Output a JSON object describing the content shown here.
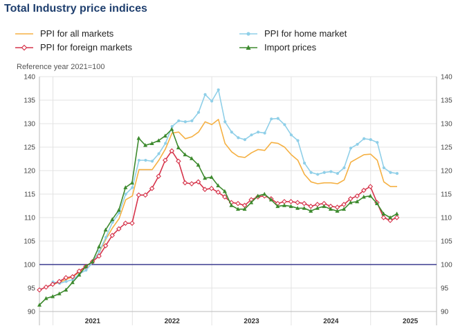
{
  "page_title": "Total Industry price indices",
  "chart_data": {
    "type": "line",
    "title": "Total Industry price indices",
    "ylabel": "Reference year 2021=100",
    "ylim": [
      90,
      140
    ],
    "yticks": [
      90,
      95,
      100,
      105,
      110,
      115,
      120,
      125,
      130,
      135,
      140
    ],
    "xlim": [
      2020.83,
      2025.83
    ],
    "year_labels": [
      "2021",
      "2022",
      "2023",
      "2024",
      "2025"
    ],
    "year_label_positions": [
      2021.5,
      2022.5,
      2023.5,
      2024.5,
      2025.5
    ],
    "year_dividers": [
      2021.0,
      2022.0,
      2023.0,
      2024.0,
      2025.0
    ],
    "reference_line": 100,
    "reference_color": "#3b3b8f",
    "series": [
      {
        "name": "PPI for all markets",
        "color": "#f5b042",
        "marker": "none",
        "start": 2021.0,
        "values": [
          95.8,
          96.2,
          96.8,
          97.4,
          98.4,
          99.6,
          100.6,
          102.6,
          105.4,
          107.8,
          109.8,
          113.8,
          114.6,
          120.2,
          120.2,
          120.2,
          122.2,
          124.6,
          128.0,
          128.2,
          126.8,
          127.2,
          128.2,
          130.4,
          129.8,
          130.9,
          125.8,
          124.0,
          123.0,
          122.8,
          123.8,
          124.5,
          124.3,
          126.0,
          125.8,
          125.0,
          123.4,
          122.2,
          119.2,
          117.6,
          117.2,
          117.4,
          117.4,
          117.2,
          118.0,
          121.8,
          122.6,
          123.4,
          123.5,
          122.2,
          117.6,
          116.6,
          116.6
        ]
      },
      {
        "name": "PPI for home market",
        "color": "#8fcfe8",
        "marker": "circle",
        "start": 2021.0,
        "values": [
          96.3,
          96.0,
          96.4,
          96.8,
          98.0,
          98.8,
          100.4,
          102.8,
          105.8,
          109.0,
          111.0,
          115.0,
          116.4,
          122.2,
          122.2,
          122.0,
          123.6,
          125.8,
          129.4,
          130.6,
          130.4,
          130.6,
          132.4,
          136.2,
          134.8,
          137.2,
          130.4,
          128.2,
          127.0,
          126.6,
          127.6,
          128.2,
          128.0,
          131.0,
          131.1,
          129.8,
          127.6,
          126.4,
          121.6,
          119.6,
          119.2,
          119.6,
          119.8,
          119.4,
          120.6,
          124.8,
          125.6,
          126.8,
          126.6,
          126.0,
          120.6,
          119.6,
          119.4
        ]
      },
      {
        "name": "PPI for foreign markets",
        "color": "#d6334a",
        "marker": "diamond",
        "start": 2020.83,
        "values": [
          94.6,
          95.2,
          95.8,
          96.4,
          97.2,
          97.4,
          98.6,
          99.6,
          100.6,
          101.8,
          104.0,
          106.2,
          107.6,
          108.8,
          108.8,
          114.8,
          114.8,
          116.2,
          118.8,
          122.2,
          124.2,
          122.0,
          117.4,
          117.2,
          117.6,
          116.0,
          116.2,
          115.4,
          114.4,
          113.2,
          113.0,
          112.6,
          113.8,
          114.4,
          114.6,
          114.0,
          113.0,
          113.4,
          113.4,
          113.2,
          113.0,
          112.4,
          112.8,
          113.0,
          112.4,
          112.2,
          112.8,
          114.0,
          114.6,
          115.8,
          116.6,
          113.2,
          110.0,
          109.4,
          110.0
        ]
      },
      {
        "name": "Import prices",
        "color": "#3d8a2e",
        "marker": "triangle",
        "start": 2020.83,
        "values": [
          91.4,
          92.8,
          93.2,
          93.8,
          94.6,
          96.2,
          97.8,
          99.6,
          100.6,
          103.8,
          107.4,
          109.6,
          111.6,
          116.4,
          117.4,
          126.9,
          125.4,
          125.8,
          126.4,
          127.4,
          128.8,
          124.9,
          123.4,
          122.6,
          121.2,
          118.4,
          118.6,
          116.8,
          115.6,
          112.6,
          111.8,
          111.8,
          113.2,
          114.6,
          115.0,
          113.8,
          112.4,
          112.6,
          112.4,
          112.0,
          112.0,
          111.4,
          112.0,
          112.4,
          111.8,
          111.4,
          111.8,
          113.2,
          113.4,
          114.4,
          114.6,
          113.0,
          110.8,
          110.0,
          110.8
        ]
      }
    ]
  }
}
